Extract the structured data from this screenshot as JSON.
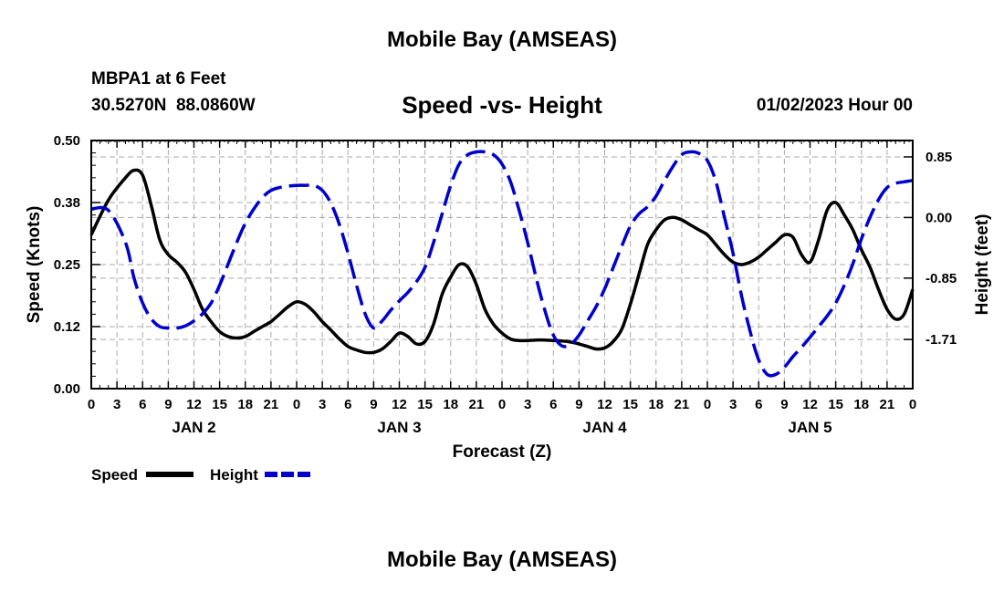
{
  "header": {
    "title": "Mobile Bay (AMSEAS)",
    "station": "MBPA1 at 6 Feet",
    "coords": "30.5270N  88.0860W",
    "run_time": "01/02/2023 Hour 00"
  },
  "footer": {
    "title": "Mobile Bay (AMSEAS)"
  },
  "chart_data": {
    "type": "line",
    "title": "Speed -vs- Height",
    "xlabel": "Forecast (Z)",
    "ylabel_left": "Speed (Knots)",
    "ylabel_right": "Height (feet)",
    "x_range_hours": [
      0,
      96
    ],
    "x_tick_labels": [
      "0",
      "3",
      "6",
      "9",
      "12",
      "15",
      "18",
      "21",
      "0",
      "3",
      "6",
      "9",
      "12",
      "15",
      "18",
      "21",
      "0",
      "3",
      "6",
      "9",
      "12",
      "15",
      "18",
      "21",
      "0",
      "3",
      "6",
      "9",
      "12",
      "15",
      "18",
      "21",
      "0"
    ],
    "day_labels": [
      "JAN 2",
      "JAN 3",
      "JAN 4",
      "JAN 5"
    ],
    "y_left": {
      "range": [
        0,
        0.5
      ],
      "ticks": [
        "0.00",
        "0.12",
        "0.25",
        "0.38",
        "0.50"
      ]
    },
    "y_right": {
      "range": [
        -2.4,
        1.08
      ],
      "ticks": [
        "0.85",
        "0.00",
        "-0.85",
        "-1.71"
      ]
    },
    "grid": true,
    "legend_position": "bottom-left",
    "colors": {
      "speed": "#000000",
      "height": "#0000cc",
      "grid": "#aaaaaa"
    },
    "series": [
      {
        "name": "Speed",
        "axis": "left",
        "style": "solid",
        "x": [
          0,
          2,
          4,
          5,
          6,
          7,
          8,
          9,
          10,
          11,
          12,
          13,
          14,
          15,
          16,
          17,
          18,
          19,
          20,
          21,
          22,
          23,
          24,
          25,
          26,
          27,
          28,
          29,
          30,
          31,
          32,
          33,
          34,
          35,
          36,
          37,
          38,
          39,
          40,
          41,
          42,
          43,
          44,
          45,
          46,
          47,
          48,
          49,
          50,
          51,
          52,
          53,
          54,
          55,
          56,
          57,
          58,
          59,
          60,
          61,
          62,
          63,
          64,
          65,
          66,
          67,
          68,
          69,
          70,
          71,
          72,
          73,
          74,
          75,
          76,
          77,
          78,
          79,
          80,
          81,
          82,
          83,
          84,
          85,
          86,
          87,
          88,
          89,
          90,
          91,
          92,
          93,
          94,
          95,
          96
        ],
        "y": [
          0.31,
          0.38,
          0.425,
          0.44,
          0.43,
          0.37,
          0.3,
          0.27,
          0.255,
          0.235,
          0.2,
          0.16,
          0.135,
          0.115,
          0.105,
          0.102,
          0.105,
          0.115,
          0.125,
          0.135,
          0.15,
          0.165,
          0.175,
          0.17,
          0.155,
          0.135,
          0.118,
          0.1,
          0.085,
          0.078,
          0.073,
          0.073,
          0.08,
          0.095,
          0.112,
          0.105,
          0.09,
          0.095,
          0.13,
          0.19,
          0.225,
          0.25,
          0.245,
          0.21,
          0.16,
          0.13,
          0.112,
          0.1,
          0.097,
          0.097,
          0.098,
          0.098,
          0.097,
          0.096,
          0.094,
          0.09,
          0.085,
          0.08,
          0.082,
          0.095,
          0.12,
          0.17,
          0.23,
          0.29,
          0.32,
          0.34,
          0.345,
          0.34,
          0.33,
          0.32,
          0.31,
          0.29,
          0.27,
          0.255,
          0.25,
          0.255,
          0.265,
          0.28,
          0.295,
          0.31,
          0.305,
          0.27,
          0.255,
          0.3,
          0.36,
          0.375,
          0.35,
          0.32,
          0.28,
          0.245,
          0.2,
          0.16,
          0.14,
          0.15,
          0.2
        ]
      },
      {
        "name": "Height",
        "axis": "right",
        "style": "dashed",
        "x": [
          0,
          2,
          4,
          5,
          6,
          7,
          8,
          9,
          10,
          11,
          12,
          13,
          14,
          15,
          16,
          17,
          18,
          19,
          20,
          21,
          22,
          23,
          24,
          25,
          26,
          27,
          28,
          29,
          30,
          31,
          32,
          33,
          34,
          35,
          36,
          37,
          38,
          39,
          40,
          41,
          42,
          43,
          44,
          45,
          46,
          47,
          48,
          49,
          50,
          51,
          52,
          53,
          54,
          55,
          56,
          57,
          58,
          59,
          60,
          61,
          62,
          63,
          64,
          65,
          66,
          67,
          68,
          69,
          70,
          71,
          72,
          73,
          74,
          75,
          76,
          77,
          78,
          79,
          80,
          81,
          82,
          83,
          84,
          85,
          86,
          87,
          88,
          89,
          90,
          91,
          92,
          93,
          94,
          95,
          96
        ],
        "y": [
          0.12,
          0.1,
          -0.35,
          -0.85,
          -1.2,
          -1.42,
          -1.53,
          -1.55,
          -1.55,
          -1.52,
          -1.45,
          -1.35,
          -1.2,
          -0.95,
          -0.65,
          -0.35,
          -0.08,
          0.12,
          0.28,
          0.38,
          0.42,
          0.44,
          0.45,
          0.45,
          0.45,
          0.38,
          0.2,
          -0.1,
          -0.5,
          -0.95,
          -1.35,
          -1.55,
          -1.45,
          -1.3,
          -1.17,
          -1.05,
          -0.9,
          -0.7,
          -0.35,
          0.05,
          0.45,
          0.75,
          0.88,
          0.92,
          0.92,
          0.88,
          0.75,
          0.5,
          0.1,
          -0.35,
          -0.85,
          -1.3,
          -1.65,
          -1.8,
          -1.78,
          -1.65,
          -1.45,
          -1.25,
          -1.0,
          -0.7,
          -0.4,
          -0.12,
          0.05,
          0.15,
          0.3,
          0.52,
          0.72,
          0.88,
          0.92,
          0.9,
          0.8,
          0.5,
          0.0,
          -0.5,
          -1.1,
          -1.6,
          -2.0,
          -2.2,
          -2.2,
          -2.1,
          -1.95,
          -1.82,
          -1.68,
          -1.53,
          -1.38,
          -1.2,
          -0.95,
          -0.65,
          -0.3,
          0.0,
          0.25,
          0.42,
          0.48,
          0.5,
          0.52
        ]
      }
    ]
  }
}
